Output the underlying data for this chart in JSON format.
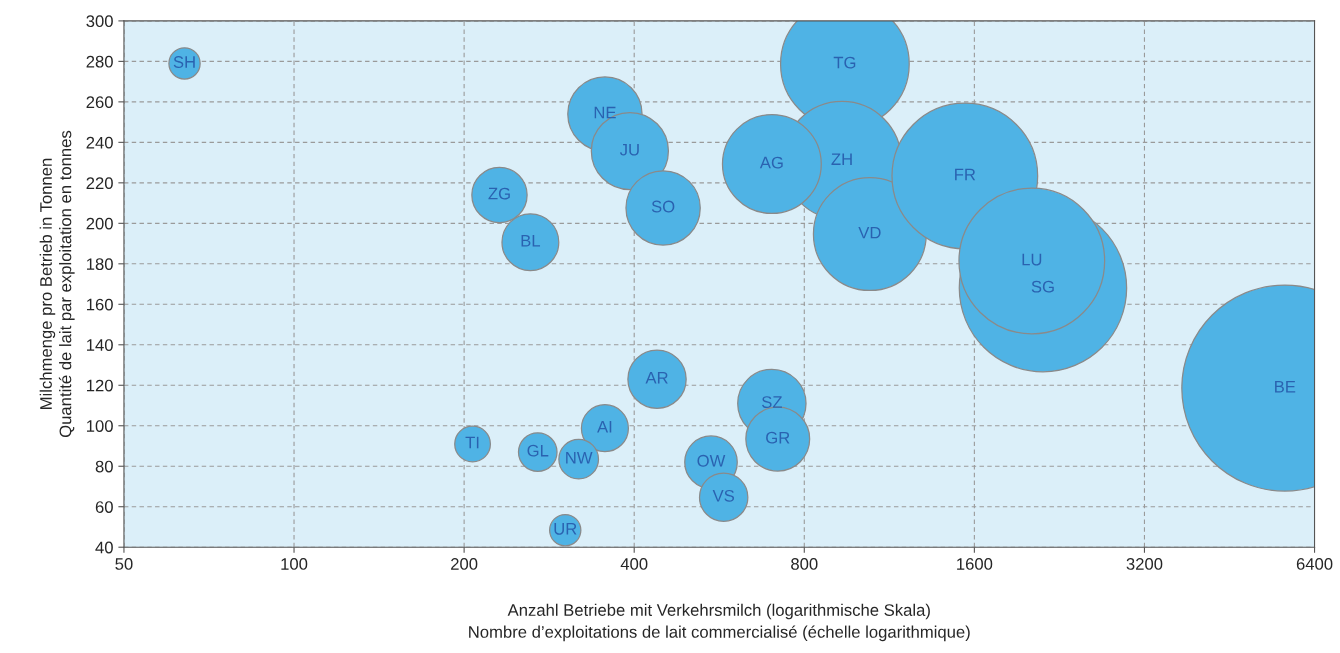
{
  "chart_data": {
    "type": "bubble",
    "xlabel": "Anzahl Betriebe mit Verkehrsmilch (logarithmische Skala)\nNombre d’exploitations de lait commercialisé (échelle logarithmique)",
    "ylabel": "Milchmenge pro Betrieb in Tonnen\nQuantité de lait par exploitation en tonnes",
    "log": "x",
    "grid": true,
    "xlim": [
      50,
      6400
    ],
    "xticks": [
      50,
      100,
      200,
      400,
      800,
      1600,
      3200,
      6400
    ],
    "ylim": [
      40,
      300
    ],
    "yticks": [
      40,
      60,
      80,
      100,
      120,
      140,
      160,
      180,
      200,
      220,
      240,
      260,
      280,
      300
    ],
    "series": [
      {
        "color": "#4fb3e5",
        "x": [
          64,
          944,
          933,
          1045,
          701,
          1539,
          2116,
          2022,
          5670,
          355,
          393,
          450,
          231,
          262,
          439,
          701,
          718,
          355,
          207,
          270,
          319,
          547,
          576,
          302
        ],
        "values": [
          279,
          278.7,
          231,
          194.7,
          229.3,
          223.4,
          168,
          181.4,
          118.6,
          254,
          235.7,
          207.6,
          214,
          190.7,
          123,
          111,
          93.4,
          98.8,
          91,
          87,
          83.5,
          82,
          64.7,
          48.4
        ],
        "sizes": [
          0.023,
          0.39,
          0.33,
          0.3,
          0.23,
          0.5,
          0.66,
          0.5,
          1,
          0.13,
          0.14,
          0.13,
          0.072,
          0.076,
          0.08,
          0.11,
          0.096,
          0.052,
          0.03,
          0.035,
          0.037,
          0.065,
          0.055,
          0.023
        ]
      }
    ],
    "annotations": [
      {
        "text": "SH",
        "x": 64,
        "y": 279
      },
      {
        "text": "TG",
        "x": 944,
        "y": 278.7
      },
      {
        "text": "ZH",
        "x": 933,
        "y": 231
      },
      {
        "text": "VD",
        "x": 1045,
        "y": 194.7
      },
      {
        "text": "AG",
        "x": 701,
        "y": 229.3
      },
      {
        "text": "LU",
        "x": 2022,
        "y": 181.4
      },
      {
        "text": "FR",
        "x": 1539,
        "y": 223.4
      },
      {
        "text": "SG",
        "x": 2116,
        "y": 168
      },
      {
        "text": "BE",
        "x": 5670,
        "y": 118.6
      },
      {
        "text": "NE",
        "x": 355,
        "y": 254
      },
      {
        "text": "JU",
        "x": 393,
        "y": 235.7
      },
      {
        "text": "SO",
        "x": 450,
        "y": 207.6
      },
      {
        "text": "ZG",
        "x": 231,
        "y": 214
      },
      {
        "text": "BL",
        "x": 262,
        "y": 190.7
      },
      {
        "text": "AR",
        "x": 439,
        "y": 123
      },
      {
        "text": "SZ",
        "x": 701,
        "y": 111
      },
      {
        "text": "GR",
        "x": 718,
        "y": 93.4
      },
      {
        "text": "AI",
        "x": 355,
        "y": 98.8
      },
      {
        "text": "TI",
        "x": 207,
        "y": 91
      },
      {
        "text": "GL",
        "x": 270,
        "y": 87
      },
      {
        "text": "NW",
        "x": 319,
        "y": 83.5
      },
      {
        "text": "OW",
        "x": 547,
        "y": 82
      },
      {
        "text": "VS",
        "x": 576,
        "y": 64.7
      },
      {
        "text": "UR",
        "x": 302,
        "y": 48.4
      }
    ]
  }
}
